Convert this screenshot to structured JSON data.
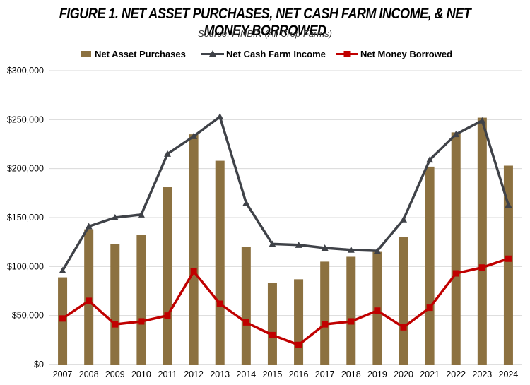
{
  "chart_data": {
    "type": "bar+line",
    "title": "FIGURE 1. NET ASSET PURCHASES, NET CASH FARM INCOME, & NET MONEY BORROWED",
    "subtitle": "Source:  FINBIN (All Crop Farms)",
    "categories": [
      "2007",
      "2008",
      "2009",
      "2010",
      "2011",
      "2012",
      "2013",
      "2014",
      "2015",
      "2016",
      "2017",
      "2018",
      "2019",
      "2020",
      "2021",
      "2022",
      "2023",
      "2024"
    ],
    "ylim": [
      0,
      300000
    ],
    "yticks": [
      0,
      50000,
      100000,
      150000,
      200000,
      250000,
      300000
    ],
    "ytick_labels": [
      "$0",
      "$50,000",
      "$100,000",
      "$150,000",
      "$200,000",
      "$250,000",
      "$300,000"
    ],
    "grid": true,
    "legend_position": "top",
    "series": [
      {
        "name": "Net Asset Purchases",
        "kind": "bar",
        "color": "#8c7140",
        "values": [
          89000,
          138000,
          123000,
          132000,
          181000,
          235000,
          208000,
          120000,
          83000,
          87000,
          105000,
          110000,
          115000,
          130000,
          202000,
          237000,
          252000,
          203000
        ]
      },
      {
        "name": "Net Cash Farm Income",
        "kind": "line",
        "marker": "triangle",
        "color": "#3f4248",
        "values": [
          96000,
          141000,
          150000,
          153000,
          215000,
          233000,
          253000,
          165000,
          123000,
          122000,
          119000,
          117000,
          116000,
          148000,
          209000,
          235000,
          249000,
          163000
        ]
      },
      {
        "name": "Net Money Borrowed",
        "kind": "line",
        "marker": "square",
        "color": "#c00000",
        "values": [
          47000,
          65000,
          41000,
          44000,
          50000,
          95000,
          62000,
          43000,
          30000,
          20000,
          41000,
          44000,
          55000,
          38000,
          58000,
          93000,
          99000,
          108000
        ]
      }
    ]
  }
}
